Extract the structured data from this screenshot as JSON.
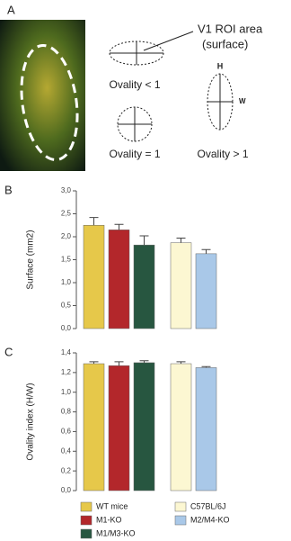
{
  "panel_labels": [
    "A",
    "B",
    "C"
  ],
  "panel_a": {
    "roi_label": [
      "V1 ROI area",
      "(surface)"
    ],
    "ovality_lt": "Ovality < 1",
    "ovality_eq": "Ovality = 1",
    "ovality_gt": "Ovality > 1",
    "h": "H",
    "w": "W"
  },
  "chart_data": [
    {
      "type": "bar",
      "ylabel": "Surface (mm2)",
      "ylim": [
        0,
        3
      ],
      "yticks": [
        {
          "value": 0,
          "label": "0,0"
        },
        {
          "value": 0.5,
          "label": "0,5"
        },
        {
          "value": 1,
          "label": "1,0"
        },
        {
          "value": 1.5,
          "label": "1,5"
        },
        {
          "value": 2,
          "label": "2,0"
        },
        {
          "value": 2.5,
          "label": "2,5"
        },
        {
          "value": 3,
          "label": "3,0"
        }
      ],
      "series": [
        {
          "name": "WT mice",
          "color": "#e6c84a",
          "values": [
            2.25
          ],
          "errors": [
            0.17
          ]
        },
        {
          "name": "M1-KO",
          "color": "#b3272b",
          "values": [
            2.15
          ],
          "errors": [
            0.12
          ]
        },
        {
          "name": "M1/M3-KO",
          "color": "#275640",
          "values": [
            1.82
          ],
          "errors": [
            0.2
          ]
        },
        {
          "name": "C57BL/6J",
          "color": "#fcf7d2",
          "values": [
            1.87
          ],
          "errors": [
            0.1
          ]
        },
        {
          "name": "M2/M4-KO",
          "color": "#a9c8e8",
          "values": [
            1.63
          ],
          "errors": [
            0.09
          ]
        }
      ]
    },
    {
      "type": "bar",
      "ylabel": "Ovality index (H/W)",
      "ylim": [
        0,
        1.4
      ],
      "yticks": [
        {
          "value": 0,
          "label": "0,0"
        },
        {
          "value": 0.2,
          "label": "0,2"
        },
        {
          "value": 0.4,
          "label": "0,4"
        },
        {
          "value": 0.6,
          "label": "0,6"
        },
        {
          "value": 0.8,
          "label": "0,8"
        },
        {
          "value": 1,
          "label": "1,0"
        },
        {
          "value": 1.2,
          "label": "1,2"
        },
        {
          "value": 1.4,
          "label": "1,4"
        }
      ],
      "series": [
        {
          "color": "#e6c84a",
          "values": [
            1.29
          ],
          "errors": [
            0.02
          ]
        },
        {
          "color": "#b3272b",
          "values": [
            1.27
          ],
          "errors": [
            0.04
          ]
        },
        {
          "color": "#275640",
          "values": [
            1.3
          ],
          "errors": [
            0.02
          ]
        },
        {
          "color": "#fcf7d2",
          "values": [
            1.29
          ],
          "errors": [
            0.02
          ]
        },
        {
          "color": "#a9c8e8",
          "values": [
            1.25
          ],
          "errors": [
            0.01
          ]
        }
      ]
    }
  ]
}
